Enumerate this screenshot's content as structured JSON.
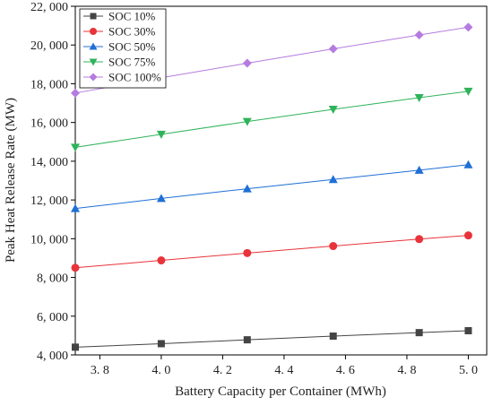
{
  "chart_data": {
    "type": "line",
    "xlabel": "Battery Capacity per Container (MWh)",
    "ylabel": "Peak Heat Release Rate (MW)",
    "xlim": [
      3.72,
      5.06
    ],
    "ylim": [
      4000,
      22000
    ],
    "x_ticks": [
      3.8,
      4.0,
      4.2,
      4.4,
      4.6,
      4.8,
      5.0
    ],
    "x_tick_labels": [
      "3. 8",
      "4. 0",
      "4. 2",
      "4. 4",
      "4. 6",
      "4. 8",
      "5. 0"
    ],
    "y_ticks": [
      4000,
      6000,
      8000,
      10000,
      12000,
      14000,
      16000,
      18000,
      20000,
      22000
    ],
    "y_tick_labels": [
      "4, 000",
      "6, 000",
      "8, 000",
      "10, 000",
      "12, 000",
      "14, 000",
      "16, 000",
      "18, 000",
      "20, 000",
      "22, 000"
    ],
    "grid": false,
    "legend_position": "top-left",
    "x": [
      3.72,
      4.0,
      4.28,
      4.56,
      4.84,
      5.0
    ],
    "series": [
      {
        "name": "SOC 10%",
        "marker": "square",
        "color": "#444444",
        "values": [
          4400,
          4580,
          4780,
          4970,
          5150,
          5250
        ]
      },
      {
        "name": "SOC 30%",
        "marker": "circle",
        "color": "#e8333a",
        "values": [
          8500,
          8880,
          9260,
          9620,
          9980,
          10170
        ]
      },
      {
        "name": "SOC 50%",
        "marker": "triangle-up",
        "color": "#1f6fd6",
        "values": [
          11560,
          12080,
          12580,
          13060,
          13540,
          13820
        ]
      },
      {
        "name": "SOC 75%",
        "marker": "triangle-down",
        "color": "#2fb35a",
        "values": [
          14720,
          15390,
          16050,
          16680,
          17280,
          17610
        ]
      },
      {
        "name": "SOC 100%",
        "marker": "diamond",
        "color": "#b57be0",
        "values": [
          17520,
          18310,
          19060,
          19800,
          20520,
          20920
        ]
      }
    ]
  }
}
